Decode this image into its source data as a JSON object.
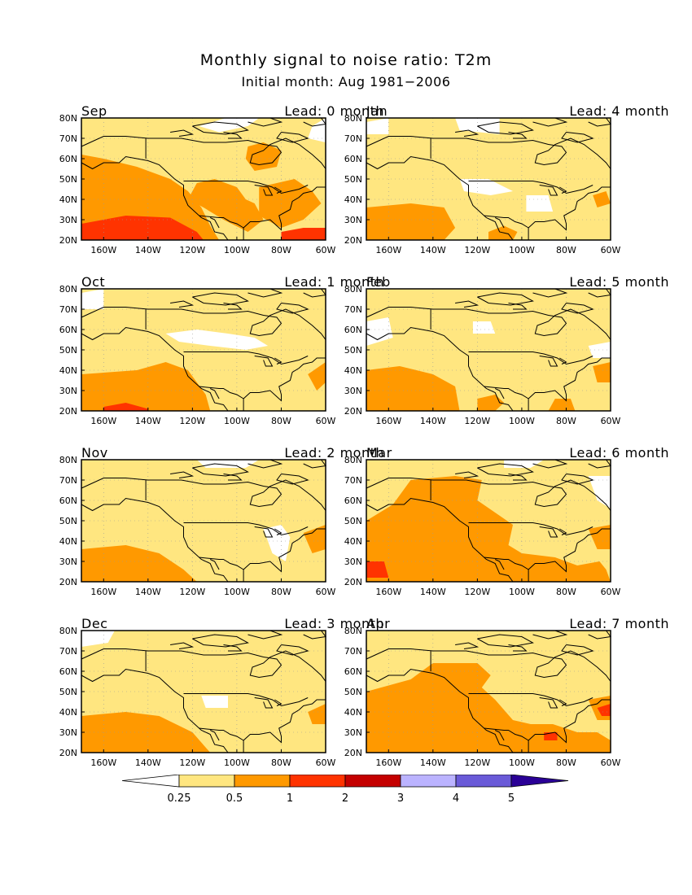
{
  "figure": {
    "title": "Monthly signal to noise ratio: T2m",
    "subtitle": "Initial month: Aug 1981−2006"
  },
  "axes": {
    "lat_ticks": [
      "80N",
      "70N",
      "60N",
      "50N",
      "40N",
      "30N",
      "20N"
    ],
    "lon_ticks": [
      "160W",
      "140W",
      "120W",
      "100W",
      "80W",
      "60W"
    ],
    "lat_range": [
      20,
      80
    ],
    "lon_range": [
      -170,
      -60
    ]
  },
  "panels": [
    {
      "month": "Sep",
      "lead": "Lead: 0 month"
    },
    {
      "month": "Jan",
      "lead": "Lead: 4 month"
    },
    {
      "month": "Oct",
      "lead": "Lead: 1 month"
    },
    {
      "month": "Feb",
      "lead": "Lead: 5 month"
    },
    {
      "month": "Nov",
      "lead": "Lead: 2 month"
    },
    {
      "month": "Mar",
      "lead": "Lead: 6 month"
    },
    {
      "month": "Dec",
      "lead": "Lead: 3 month"
    },
    {
      "month": "Apr",
      "lead": "Lead: 7 month"
    }
  ],
  "colorbar": {
    "labels": [
      "0.25",
      "0.5",
      "1",
      "2",
      "3",
      "4",
      "5"
    ],
    "colors": [
      "#ffffff",
      "#ffe680",
      "#ff9900",
      "#ff3300",
      "#c40000",
      "#bbb3ff",
      "#6a5ad8",
      "#2a0096"
    ]
  }
}
